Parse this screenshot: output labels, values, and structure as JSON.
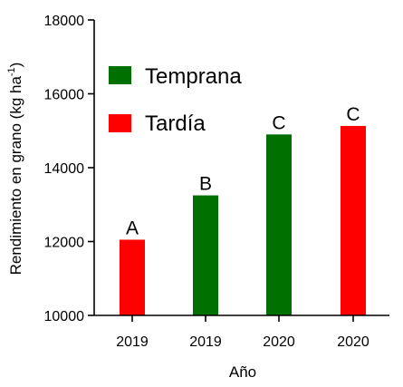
{
  "chart_data": {
    "type": "bar",
    "categories": [
      "2019",
      "2019",
      "2020",
      "2020"
    ],
    "values": [
      12050,
      13250,
      14900,
      15130
    ],
    "bar_colors": [
      "#ff0000",
      "#007000",
      "#007000",
      "#ff0000"
    ],
    "letters": [
      "A",
      "B",
      "C",
      "C"
    ],
    "xlabel": "Año",
    "ylabel_main": "Rendimiento en grano (kg ha",
    "ylabel_sup": "-1",
    "ylabel_close": ")",
    "ylim": [
      10000,
      18000
    ],
    "yticks": [
      10000,
      12000,
      14000,
      16000,
      18000
    ],
    "ytick_labels": [
      "10000",
      "12000",
      "14000",
      "16000",
      "18000"
    ],
    "grid": false,
    "legend_position": "top-left",
    "legend": [
      {
        "label": "Temprana",
        "color": "#007000"
      },
      {
        "label": "Tardía",
        "color": "#ff0000"
      }
    ]
  }
}
